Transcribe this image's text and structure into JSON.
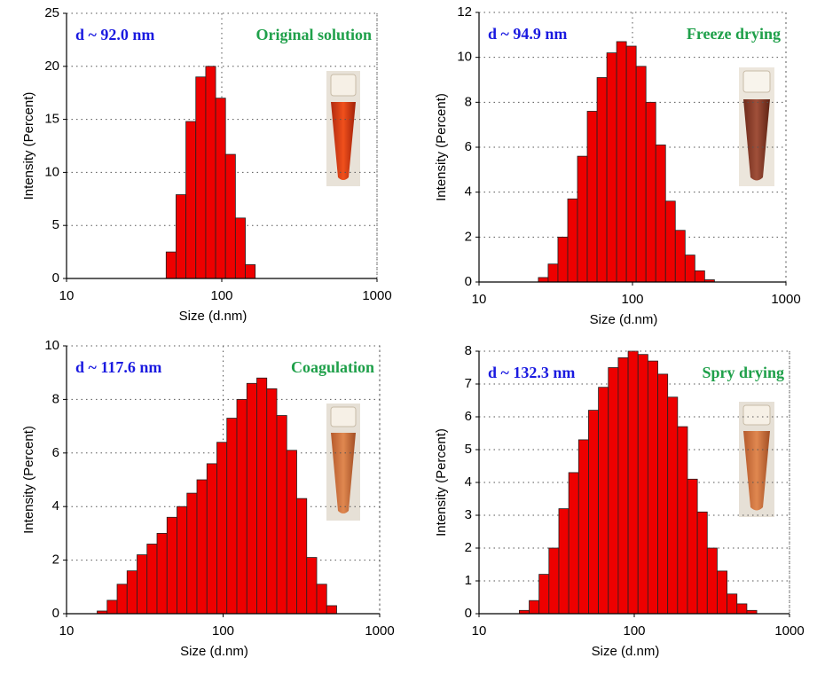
{
  "chart_data": [
    {
      "type": "histogram",
      "annotation": "d ~ 92.0 nm",
      "title": "Original solution",
      "x_label": "Size (d.nm)",
      "y_label": "Intensity (Percent)",
      "bins": [
        43.82,
        50.75,
        58.77,
        68.06,
        78.82,
        91.28,
        105.7,
        122.4,
        141.8,
        164.2
      ],
      "values": [
        2.5,
        7.9,
        14.8,
        19.0,
        20.0,
        17.0,
        11.7,
        5.7,
        1.3
      ],
      "color": "#ee0000",
      "xlim": [
        10,
        1000
      ],
      "xticks": [
        10,
        100,
        1000
      ],
      "xscale": "log",
      "ylim": [
        0,
        25
      ],
      "yticks": [
        0,
        5,
        10,
        15,
        20,
        25
      ],
      "grid": true
    },
    {
      "type": "histogram",
      "annotation": "d ~ 94.9 nm",
      "title": "Freeze drying",
      "x_label": "Size (d.nm)",
      "y_label": "Intensity (Percent)",
      "bins": [
        24.36,
        28.21,
        32.67,
        37.84,
        43.82,
        50.75,
        58.77,
        68.06,
        78.82,
        91.28,
        105.7,
        122.4,
        141.8,
        164.2,
        190.1,
        220.2,
        255.0,
        295.3,
        342.0
      ],
      "values": [
        0.2,
        0.8,
        2.0,
        3.7,
        5.6,
        7.6,
        9.1,
        10.2,
        10.7,
        10.5,
        9.6,
        8.0,
        6.1,
        3.6,
        2.3,
        1.2,
        0.5,
        0.1
      ],
      "color": "#ee0000",
      "xlim": [
        10,
        1000
      ],
      "xticks": [
        10,
        100,
        1000
      ],
      "xscale": "log",
      "ylim": [
        0,
        12
      ],
      "yticks": [
        0,
        2,
        4,
        6,
        8,
        10,
        12
      ],
      "grid": true
    },
    {
      "type": "histogram",
      "annotation": "d ~ 117.6 nm",
      "title": "Coagulation",
      "x_label": "Size (d.nm)",
      "y_label": "Intensity (Percent)",
      "bins": [
        15.69,
        18.17,
        21.04,
        24.36,
        28.21,
        32.67,
        37.84,
        43.82,
        50.75,
        58.77,
        68.06,
        78.82,
        91.28,
        105.7,
        122.4,
        141.8,
        164.2,
        190.1,
        220.2,
        255.0,
        295.3,
        342.0,
        396.1,
        458.7,
        531.2
      ],
      "values": [
        0.1,
        0.5,
        1.1,
        1.6,
        2.2,
        2.6,
        3.0,
        3.6,
        4.0,
        4.5,
        5.0,
        5.6,
        6.4,
        7.3,
        8.0,
        8.6,
        8.8,
        8.4,
        7.4,
        6.1,
        4.3,
        2.1,
        1.1,
        0.3
      ],
      "color": "#ee0000",
      "xlim": [
        10,
        1000
      ],
      "xticks": [
        10,
        100,
        1000
      ],
      "xscale": "log",
      "ylim": [
        0,
        10
      ],
      "yticks": [
        0,
        2,
        4,
        6,
        8,
        10
      ],
      "grid": true
    },
    {
      "type": "histogram",
      "annotation": "d ~ 132.3 nm",
      "title": "Spry drying",
      "x_label": "Size (d.nm)",
      "y_label": "Intensity (Percent)",
      "bins": [
        18.17,
        21.04,
        24.36,
        28.21,
        32.67,
        37.84,
        43.82,
        50.75,
        58.77,
        68.06,
        78.82,
        91.28,
        105.7,
        122.4,
        141.8,
        164.2,
        190.1,
        220.2,
        255.0,
        295.3,
        342.0,
        396.1,
        458.7,
        531.2,
        615.1
      ],
      "values": [
        0.1,
        0.4,
        1.2,
        2.0,
        3.2,
        4.3,
        5.3,
        6.2,
        6.9,
        7.5,
        7.8,
        8.0,
        7.9,
        7.7,
        7.3,
        6.6,
        5.7,
        4.1,
        3.1,
        2.0,
        1.3,
        0.6,
        0.3,
        0.1
      ],
      "color": "#ee0000",
      "xlim": [
        10,
        1000
      ],
      "xticks": [
        10,
        100,
        1000
      ],
      "xscale": "log",
      "ylim": [
        0,
        8
      ],
      "yticks": [
        0,
        1,
        2,
        3,
        4,
        5,
        6,
        7,
        8
      ],
      "grid": true
    }
  ]
}
